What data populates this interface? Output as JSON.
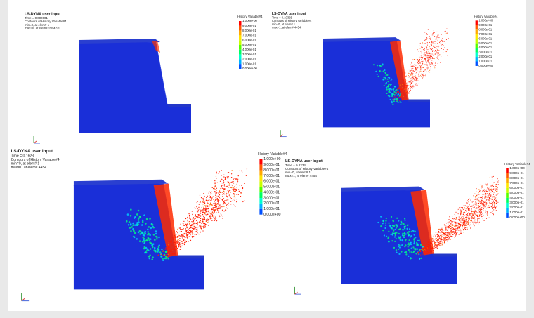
{
  "panels": [
    {
      "title": "LS-DYNA user input",
      "time": "Time = 0.000001",
      "contour": "Contours of History Variable#4",
      "min": "min=0, at elem# 1",
      "max": "max=0, at elem# 1914220",
      "legend_title": "History Variable#4"
    },
    {
      "title": "LS-DYNA user input",
      "time": "Time = 0.10325",
      "contour": "Contours of History Variable#4",
      "min": "min=0, at elem# 1",
      "max": "max=1, at elem# 4454",
      "legend_title": "History Variable#4"
    },
    {
      "title": "LS-DYNA user input",
      "time": "Time = 0.1623",
      "contour": "Contours of History Variable#4",
      "min": "min=0, at elem# 1",
      "max": "max=1, at elem# 4454",
      "legend_title": "History Variable#4"
    },
    {
      "title": "LS-DYNA user input",
      "time": "Time = 0.2234",
      "contour": "Contours of History Variable#4",
      "min": "min=0, at elem# 1",
      "max": "max=1, at elem# 4454",
      "legend_title": "History Variable#4"
    }
  ],
  "legend_labels": [
    "1.000e+00",
    "9.000e-01",
    "8.000e-01",
    "7.000e-01",
    "6.000e-01",
    "5.000e-01",
    "4.000e-01",
    "3.000e-01",
    "2.000e-01",
    "1.000e-01",
    "0.000e+00"
  ]
}
